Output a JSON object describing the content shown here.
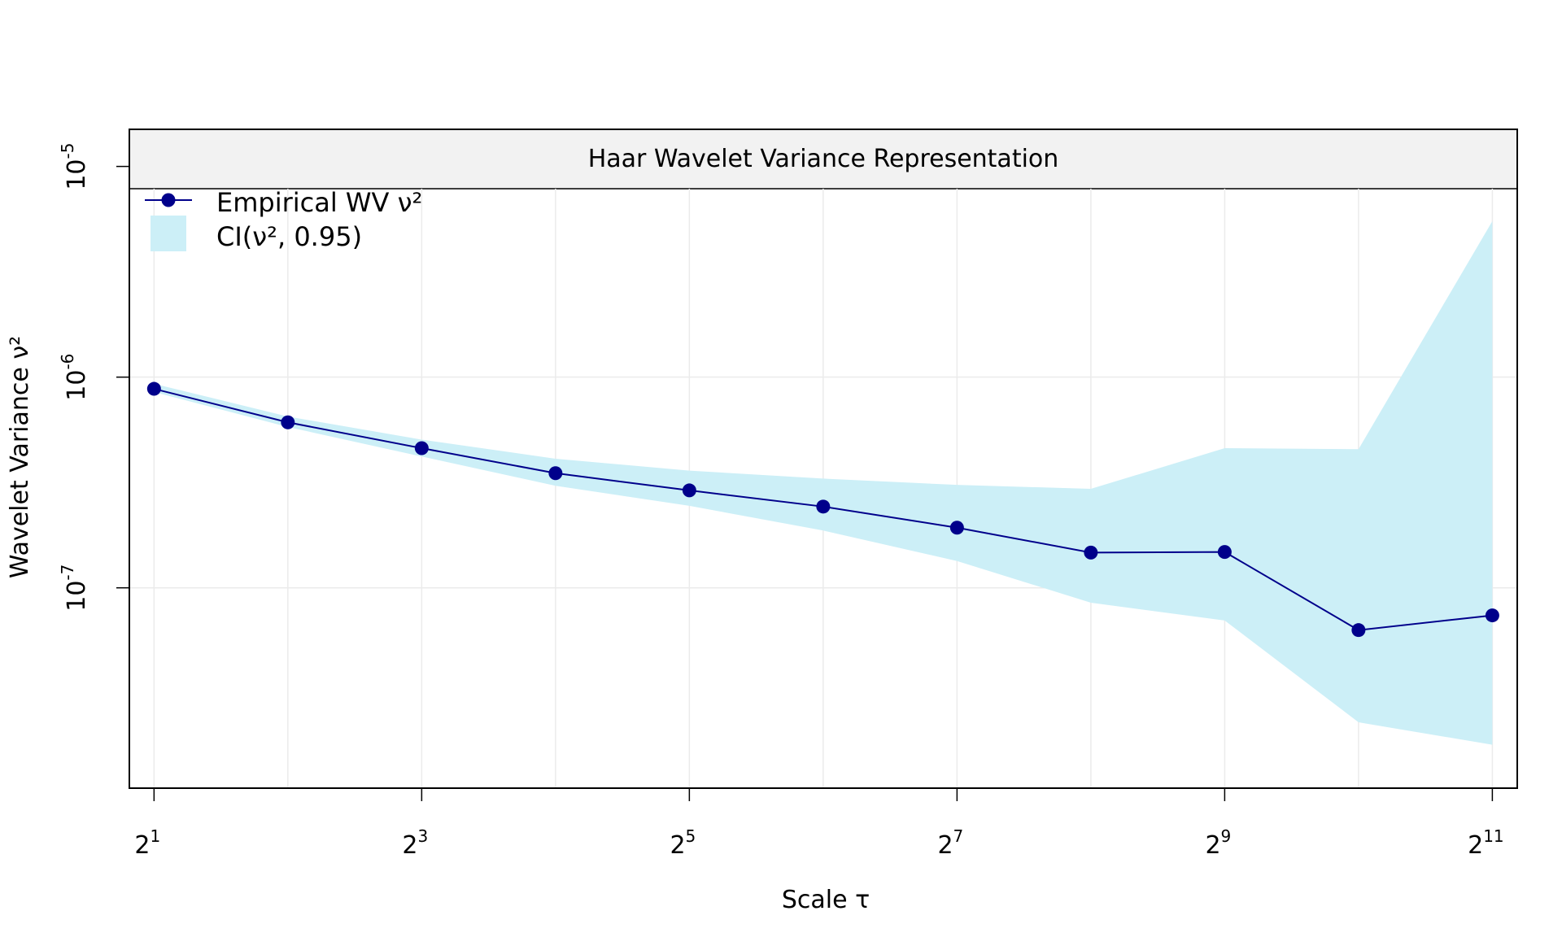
{
  "chart_data": {
    "type": "line",
    "title": "Haar Wavelet Variance Representation",
    "xlabel": "Scale τ",
    "ylabel": "Wavelet Variance ν²",
    "x_scale": "log2",
    "y_scale": "log10",
    "x_ticks": [
      {
        "base": "2",
        "exp": "1",
        "value": 2
      },
      {
        "base": "2",
        "exp": "3",
        "value": 8
      },
      {
        "base": "2",
        "exp": "5",
        "value": 32
      },
      {
        "base": "2",
        "exp": "7",
        "value": 128
      },
      {
        "base": "2",
        "exp": "9",
        "value": 512
      },
      {
        "base": "2",
        "exp": "11",
        "value": 2048
      }
    ],
    "y_ticks": [
      {
        "base": "10",
        "exp": "-7",
        "value": 1e-07
      },
      {
        "base": "10",
        "exp": "-6",
        "value": 1e-06
      },
      {
        "base": "10",
        "exp": "-5",
        "value": 1e-05
      }
    ],
    "xlim": [
      1.76,
      2330
    ],
    "ylim": [
      1.12e-08,
      1.5e-05
    ],
    "grid": true,
    "legend_position": "top-left",
    "series": [
      {
        "name": "Empirical WV ν²",
        "x": [
          2,
          4,
          8,
          16,
          32,
          64,
          128,
          256,
          512,
          1024,
          2048
        ],
        "values": [
          8.8e-07,
          6.1e-07,
          4.6e-07,
          3.5e-07,
          2.9e-07,
          2.43e-07,
          1.93e-07,
          1.47e-07,
          1.48e-07,
          6.3e-08,
          7.4e-08
        ],
        "color": "#00008B"
      }
    ],
    "ci": {
      "name": "CI(ν², 0.95)",
      "x": [
        2,
        4,
        8,
        16,
        32,
        64,
        128,
        256,
        512,
        1024,
        2048
      ],
      "lower": [
        8.5e-07,
        5.8e-07,
        4.2e-07,
        3.05e-07,
        2.45e-07,
        1.87e-07,
        1.34e-07,
        8.5e-08,
        7e-08,
        2.3e-08,
        1.8e-08
      ],
      "upper": [
        9.3e-07,
        6.5e-07,
        5.05e-07,
        4.1e-07,
        3.6e-07,
        3.3e-07,
        3.08e-07,
        2.95e-07,
        4.6e-07,
        4.55e-07,
        5.5e-06
      ],
      "color": "#CCEFF7"
    }
  }
}
